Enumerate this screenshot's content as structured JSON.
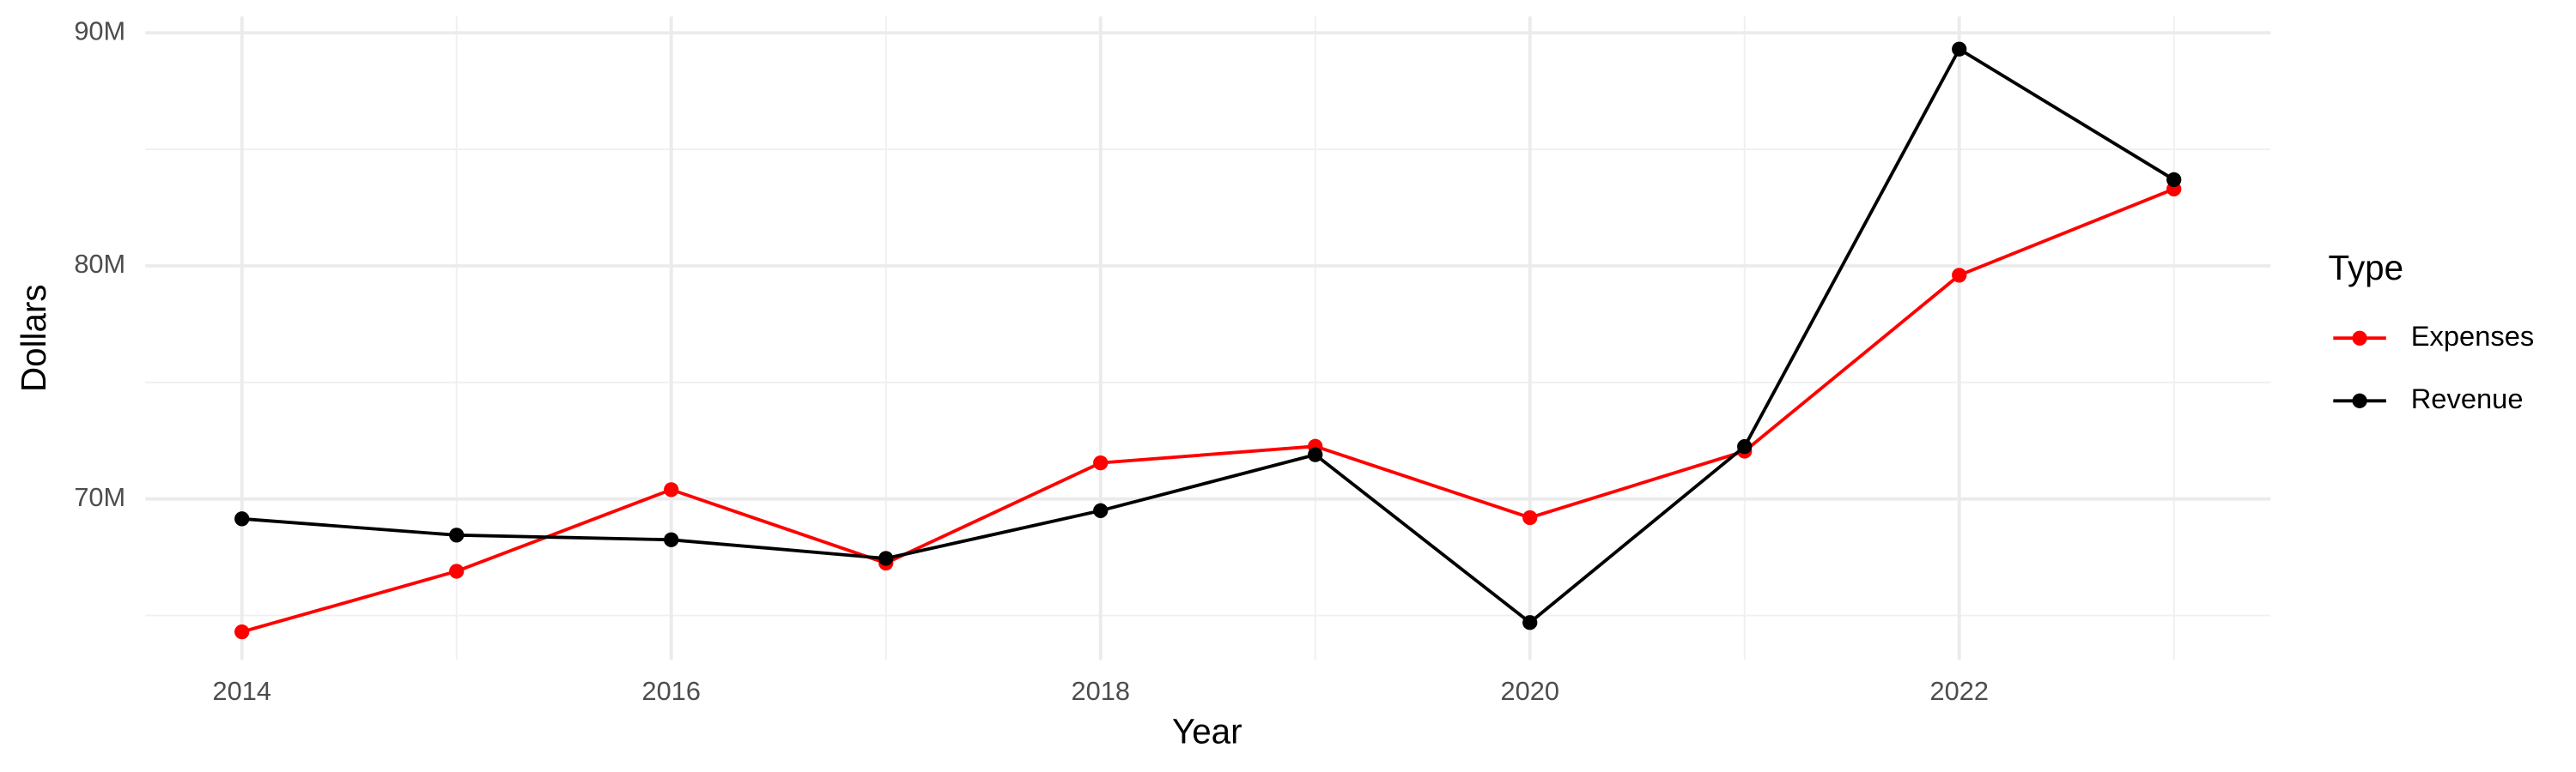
{
  "chart_data": {
    "type": "line",
    "x_label": "Year",
    "y_label": "Dollars",
    "x": [
      2014,
      2015,
      2016,
      2017,
      2018,
      2019,
      2020,
      2021,
      2022,
      2023
    ],
    "series": [
      {
        "name": "Expenses",
        "color": "#ff0000",
        "values": [
          64300000,
          66900000,
          70400000,
          67250000,
          71550000,
          72260000,
          69200000,
          72050000,
          79600000,
          83300000
        ]
      },
      {
        "name": "Revenue",
        "color": "#000000",
        "values": [
          69150000,
          68450000,
          68250000,
          67450000,
          69500000,
          71900000,
          64700000,
          72250000,
          89300000,
          83700000
        ]
      }
    ],
    "xlim": [
      2013.55,
      2023.45
    ],
    "xticks": [
      2014,
      2016,
      2018,
      2020,
      2022
    ],
    "ylim": [
      63100000,
      90700000
    ],
    "yticks": [
      {
        "value": 70000000,
        "label": "70M"
      },
      {
        "value": 80000000,
        "label": "80M"
      },
      {
        "value": 90000000,
        "label": "90M"
      }
    ],
    "grid": true,
    "legend_title": "Type",
    "legend_position": "right"
  }
}
